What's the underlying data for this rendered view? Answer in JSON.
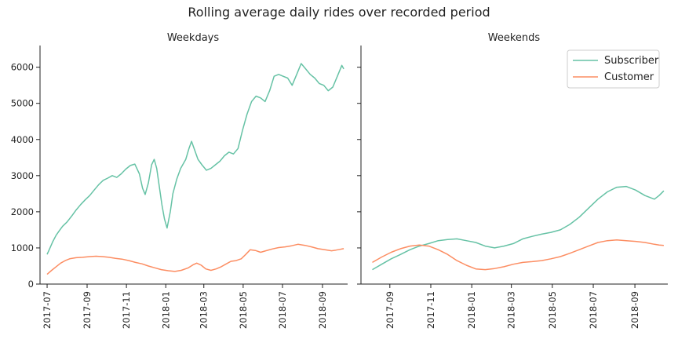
{
  "chart_data": {
    "type": "line",
    "title": "Rolling average daily rides over recorded period",
    "ylim": [
      0,
      6600
    ],
    "yticks": [
      0,
      1000,
      2000,
      3000,
      4000,
      5000,
      6000
    ],
    "colors": {
      "Subscriber": "#66c2a5",
      "Customer": "#fc8d62"
    },
    "legend": {
      "entries": [
        "Subscriber",
        "Customer"
      ],
      "placement": "top-right of Weekends panel"
    },
    "grid": false,
    "panels": [
      {
        "title": "Weekdays",
        "xlim": [
          "2017-06-20",
          "2018-10-10"
        ],
        "xticks": [
          "2017-07",
          "2017-09",
          "2017-11",
          "2018-01",
          "2018-03",
          "2018-05",
          "2018-07",
          "2018-09"
        ],
        "series": [
          {
            "name": "Subscriber",
            "points": [
              [
                "2017-07-01",
                820
              ],
              [
                "2017-07-05",
                980
              ],
              [
                "2017-07-10",
                1180
              ],
              [
                "2017-07-15",
                1350
              ],
              [
                "2017-07-20",
                1480
              ],
              [
                "2017-07-25",
                1600
              ],
              [
                "2017-08-01",
                1720
              ],
              [
                "2017-08-08",
                1880
              ],
              [
                "2017-08-15",
                2050
              ],
              [
                "2017-08-22",
                2200
              ],
              [
                "2017-08-29",
                2330
              ],
              [
                "2017-09-05",
                2450
              ],
              [
                "2017-09-12",
                2600
              ],
              [
                "2017-09-19",
                2750
              ],
              [
                "2017-09-26",
                2870
              ],
              [
                "2017-10-03",
                2930
              ],
              [
                "2017-10-10",
                3000
              ],
              [
                "2017-10-17",
                2950
              ],
              [
                "2017-10-24",
                3050
              ],
              [
                "2017-10-31",
                3180
              ],
              [
                "2017-11-07",
                3280
              ],
              [
                "2017-11-14",
                3320
              ],
              [
                "2017-11-21",
                3050
              ],
              [
                "2017-11-26",
                2650
              ],
              [
                "2017-11-30",
                2480
              ],
              [
                "2017-12-05",
                2800
              ],
              [
                "2017-12-10",
                3300
              ],
              [
                "2017-12-14",
                3450
              ],
              [
                "2017-12-18",
                3200
              ],
              [
                "2017-12-22",
                2700
              ],
              [
                "2017-12-26",
                2200
              ],
              [
                "2017-12-30",
                1800
              ],
              [
                "2018-01-03",
                1550
              ],
              [
                "2018-01-08",
                2000
              ],
              [
                "2018-01-12",
                2500
              ],
              [
                "2018-01-18",
                2900
              ],
              [
                "2018-01-24",
                3200
              ],
              [
                "2018-02-01",
                3450
              ],
              [
                "2018-02-06",
                3750
              ],
              [
                "2018-02-10",
                3950
              ],
              [
                "2018-02-15",
                3700
              ],
              [
                "2018-02-20",
                3450
              ],
              [
                "2018-02-26",
                3300
              ],
              [
                "2018-03-05",
                3150
              ],
              [
                "2018-03-12",
                3200
              ],
              [
                "2018-03-19",
                3300
              ],
              [
                "2018-03-26",
                3400
              ],
              [
                "2018-04-02",
                3550
              ],
              [
                "2018-04-09",
                3650
              ],
              [
                "2018-04-16",
                3600
              ],
              [
                "2018-04-23",
                3750
              ],
              [
                "2018-04-30",
                4250
              ],
              [
                "2018-05-07",
                4700
              ],
              [
                "2018-05-14",
                5050
              ],
              [
                "2018-05-21",
                5200
              ],
              [
                "2018-05-28",
                5150
              ],
              [
                "2018-06-04",
                5050
              ],
              [
                "2018-06-11",
                5350
              ],
              [
                "2018-06-18",
                5750
              ],
              [
                "2018-06-25",
                5800
              ],
              [
                "2018-07-02",
                5750
              ],
              [
                "2018-07-09",
                5700
              ],
              [
                "2018-07-16",
                5500
              ],
              [
                "2018-07-23",
                5800
              ],
              [
                "2018-07-30",
                6100
              ],
              [
                "2018-08-06",
                5950
              ],
              [
                "2018-08-13",
                5800
              ],
              [
                "2018-08-20",
                5700
              ],
              [
                "2018-08-27",
                5550
              ],
              [
                "2018-09-03",
                5500
              ],
              [
                "2018-09-10",
                5350
              ],
              [
                "2018-09-17",
                5450
              ],
              [
                "2018-09-24",
                5750
              ],
              [
                "2018-10-01",
                6050
              ],
              [
                "2018-10-04",
                5950
              ]
            ]
          },
          {
            "name": "Customer",
            "points": [
              [
                "2017-07-01",
                270
              ],
              [
                "2017-07-08",
                380
              ],
              [
                "2017-07-15",
                480
              ],
              [
                "2017-07-22",
                580
              ],
              [
                "2017-07-29",
                650
              ],
              [
                "2017-08-05",
                700
              ],
              [
                "2017-08-15",
                730
              ],
              [
                "2017-08-25",
                740
              ],
              [
                "2017-09-05",
                760
              ],
              [
                "2017-09-15",
                770
              ],
              [
                "2017-09-25",
                760
              ],
              [
                "2017-10-05",
                740
              ],
              [
                "2017-10-15",
                710
              ],
              [
                "2017-10-25",
                690
              ],
              [
                "2017-11-05",
                650
              ],
              [
                "2017-11-15",
                600
              ],
              [
                "2017-11-25",
                560
              ],
              [
                "2017-12-05",
                500
              ],
              [
                "2017-12-15",
                450
              ],
              [
                "2017-12-25",
                400
              ],
              [
                "2018-01-05",
                370
              ],
              [
                "2018-01-15",
                350
              ],
              [
                "2018-01-25",
                380
              ],
              [
                "2018-02-05",
                450
              ],
              [
                "2018-02-12",
                530
              ],
              [
                "2018-02-18",
                580
              ],
              [
                "2018-02-25",
                520
              ],
              [
                "2018-03-04",
                420
              ],
              [
                "2018-03-12",
                380
              ],
              [
                "2018-03-20",
                420
              ],
              [
                "2018-03-28",
                480
              ],
              [
                "2018-04-05",
                560
              ],
              [
                "2018-04-12",
                630
              ],
              [
                "2018-04-20",
                650
              ],
              [
                "2018-04-28",
                700
              ],
              [
                "2018-05-05",
                820
              ],
              [
                "2018-05-12",
                950
              ],
              [
                "2018-05-20",
                930
              ],
              [
                "2018-05-28",
                880
              ],
              [
                "2018-06-05",
                920
              ],
              [
                "2018-06-15",
                970
              ],
              [
                "2018-06-25",
                1010
              ],
              [
                "2018-07-05",
                1030
              ],
              [
                "2018-07-15",
                1060
              ],
              [
                "2018-07-25",
                1100
              ],
              [
                "2018-08-05",
                1070
              ],
              [
                "2018-08-15",
                1030
              ],
              [
                "2018-08-25",
                980
              ],
              [
                "2018-09-05",
                950
              ],
              [
                "2018-09-15",
                920
              ],
              [
                "2018-09-22",
                940
              ],
              [
                "2018-10-01",
                970
              ],
              [
                "2018-10-04",
                980
              ]
            ]
          }
        ]
      },
      {
        "title": "Weekends",
        "xlim": [
          "2017-07-20",
          "2018-10-20"
        ],
        "xticks": [
          "2017-09",
          "2017-11",
          "2018-01",
          "2018-03",
          "2018-05",
          "2018-07",
          "2018-09"
        ],
        "series": [
          {
            "name": "Subscriber",
            "points": [
              [
                "2017-08-06",
                400
              ],
              [
                "2017-08-20",
                550
              ],
              [
                "2017-09-03",
                700
              ],
              [
                "2017-09-17",
                820
              ],
              [
                "2017-10-01",
                950
              ],
              [
                "2017-10-15",
                1050
              ],
              [
                "2017-10-29",
                1120
              ],
              [
                "2017-11-12",
                1200
              ],
              [
                "2017-11-26",
                1230
              ],
              [
                "2017-12-10",
                1250
              ],
              [
                "2017-12-24",
                1200
              ],
              [
                "2018-01-07",
                1150
              ],
              [
                "2018-01-21",
                1050
              ],
              [
                "2018-02-04",
                1000
              ],
              [
                "2018-02-18",
                1050
              ],
              [
                "2018-03-04",
                1120
              ],
              [
                "2018-03-18",
                1250
              ],
              [
                "2018-04-01",
                1320
              ],
              [
                "2018-04-15",
                1380
              ],
              [
                "2018-04-29",
                1430
              ],
              [
                "2018-05-13",
                1500
              ],
              [
                "2018-05-27",
                1650
              ],
              [
                "2018-06-10",
                1850
              ],
              [
                "2018-06-24",
                2100
              ],
              [
                "2018-07-08",
                2350
              ],
              [
                "2018-07-22",
                2550
              ],
              [
                "2018-08-05",
                2680
              ],
              [
                "2018-08-19",
                2700
              ],
              [
                "2018-09-02",
                2600
              ],
              [
                "2018-09-16",
                2450
              ],
              [
                "2018-09-30",
                2350
              ],
              [
                "2018-10-07",
                2450
              ],
              [
                "2018-10-14",
                2580
              ]
            ]
          },
          {
            "name": "Customer",
            "points": [
              [
                "2017-08-06",
                600
              ],
              [
                "2017-08-20",
                750
              ],
              [
                "2017-09-03",
                880
              ],
              [
                "2017-09-17",
                980
              ],
              [
                "2017-10-01",
                1050
              ],
              [
                "2017-10-15",
                1080
              ],
              [
                "2017-10-29",
                1050
              ],
              [
                "2017-11-12",
                950
              ],
              [
                "2017-11-26",
                820
              ],
              [
                "2017-12-10",
                650
              ],
              [
                "2017-12-24",
                520
              ],
              [
                "2018-01-07",
                420
              ],
              [
                "2018-01-21",
                400
              ],
              [
                "2018-02-04",
                430
              ],
              [
                "2018-02-18",
                480
              ],
              [
                "2018-03-04",
                550
              ],
              [
                "2018-03-18",
                600
              ],
              [
                "2018-04-01",
                620
              ],
              [
                "2018-04-15",
                650
              ],
              [
                "2018-04-29",
                700
              ],
              [
                "2018-05-13",
                760
              ],
              [
                "2018-05-27",
                850
              ],
              [
                "2018-06-10",
                950
              ],
              [
                "2018-06-24",
                1050
              ],
              [
                "2018-07-08",
                1150
              ],
              [
                "2018-07-22",
                1200
              ],
              [
                "2018-08-05",
                1220
              ],
              [
                "2018-08-19",
                1200
              ],
              [
                "2018-09-02",
                1180
              ],
              [
                "2018-09-16",
                1150
              ],
              [
                "2018-09-30",
                1100
              ],
              [
                "2018-10-07",
                1080
              ],
              [
                "2018-10-14",
                1070
              ]
            ]
          }
        ]
      }
    ]
  }
}
